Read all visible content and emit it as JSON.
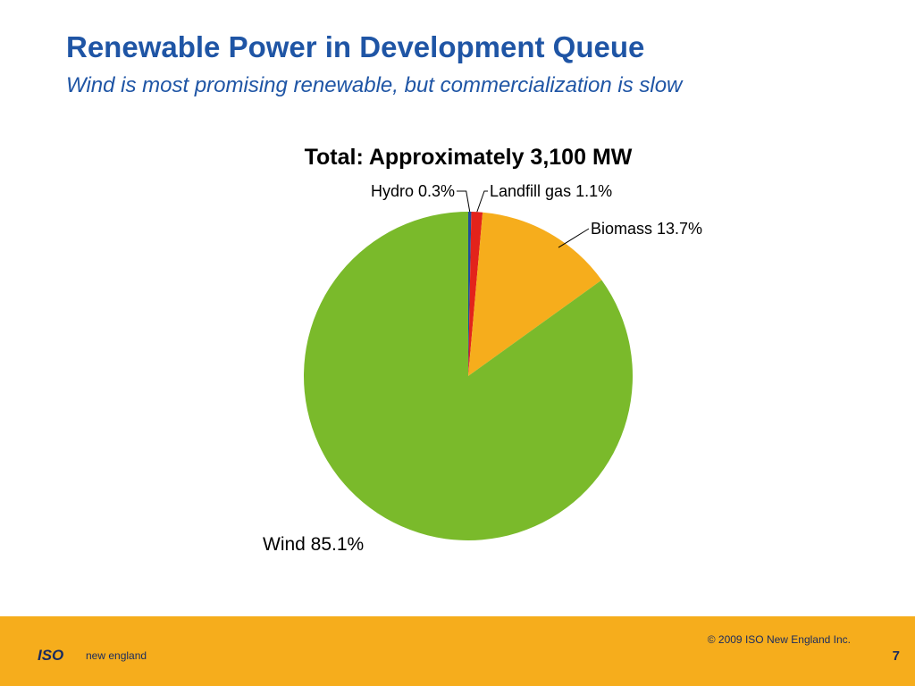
{
  "header": {
    "title": "Renewable Power in Development Queue",
    "subtitle": "Wind is most promising renewable, but commercialization is slow"
  },
  "chart_data": {
    "type": "pie",
    "title": "Total: Approximately 3,100 MW",
    "slices": [
      {
        "name": "Hydro",
        "value": 0.3,
        "label": "Hydro 0.3%",
        "color": "#1f4e9b"
      },
      {
        "name": "Landfill gas",
        "value": 1.1,
        "label": "Landfill gas 1.1%",
        "color": "#e3231b"
      },
      {
        "name": "Biomass",
        "value": 13.7,
        "label": "Biomass 13.7%",
        "color": "#f6ad1c"
      },
      {
        "name": "Wind",
        "value": 85.1,
        "label": "Wind 85.1%",
        "color": "#7aba2b"
      }
    ]
  },
  "footer": {
    "copyright": "© 2009 ISO New England Inc.",
    "page_number": "7",
    "logo_iso": "ISO",
    "logo_text": "new england",
    "background_color": "#f6ad1c"
  }
}
